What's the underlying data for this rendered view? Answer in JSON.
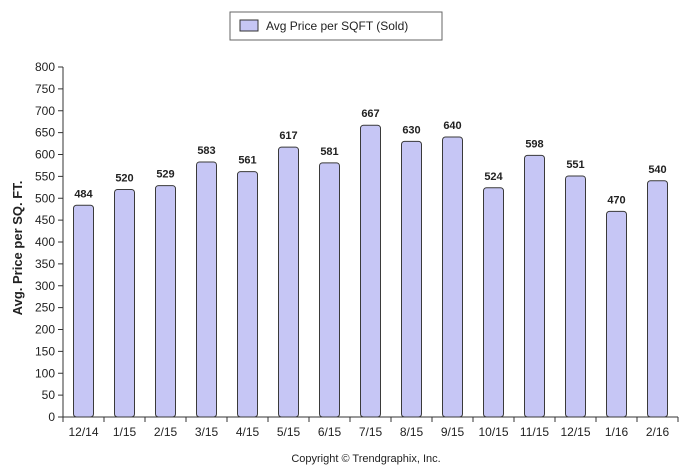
{
  "chart_data": {
    "type": "bar",
    "categories": [
      "12/14",
      "1/15",
      "2/15",
      "3/15",
      "4/15",
      "5/15",
      "6/15",
      "7/15",
      "8/15",
      "9/15",
      "10/15",
      "11/15",
      "12/15",
      "1/16",
      "2/16"
    ],
    "series": [
      {
        "name": "Avg Price per SQFT (Sold)",
        "values": [
          484,
          520,
          529,
          583,
          561,
          617,
          581,
          667,
          630,
          640,
          524,
          598,
          551,
          470,
          540
        ]
      }
    ],
    "ylabel": "Avg. Price per SQ. FT.",
    "xlabel": "",
    "ylim": [
      0,
      800
    ],
    "ytick_step": 50,
    "grid": false,
    "legend_position": "top-center",
    "bar_color": "#c6c6f5",
    "bar_edge_color": "#3a3a3a"
  },
  "footer": {
    "copyright": "Copyright © Trendgraphix, Inc."
  }
}
